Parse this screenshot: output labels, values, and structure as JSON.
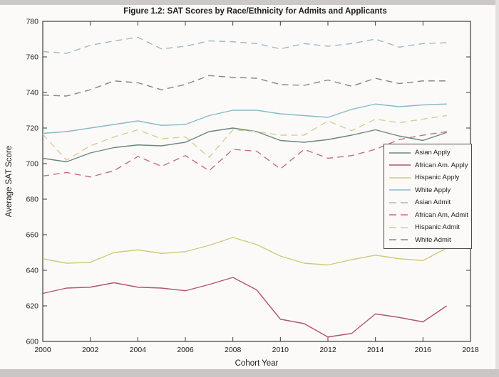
{
  "chart_data": {
    "type": "line",
    "title": "Figure 1.2: SAT Scores by Race/Ethnicity for Admits and Applicants",
    "xlabel": "Cohort Year",
    "ylabel": "Average SAT Score",
    "xlim": [
      2000,
      2018
    ],
    "ylim": [
      600,
      780
    ],
    "x_ticks": [
      2000,
      2002,
      2004,
      2006,
      2008,
      2010,
      2012,
      2014,
      2016,
      2018
    ],
    "y_ticks": [
      600,
      620,
      640,
      660,
      680,
      700,
      720,
      740,
      760,
      780
    ],
    "grid": false,
    "legend_position": "right-middle",
    "x": [
      2000,
      2001,
      2002,
      2003,
      2004,
      2005,
      2006,
      2007,
      2008,
      2009,
      2010,
      2011,
      2012,
      2013,
      2014,
      2015,
      2016,
      2017
    ],
    "series": [
      {
        "name": "Asian Apply",
        "style": "solid",
        "color": "#68887e",
        "values": [
          703,
          701,
          706,
          709,
          710.5,
          710,
          712,
          718,
          720,
          718,
          713,
          712,
          713.5,
          716,
          719,
          715.5,
          713,
          717.5
        ]
      },
      {
        "name": "African Am. Apply",
        "style": "solid",
        "color": "#b2546c",
        "values": [
          627,
          630,
          630.5,
          633,
          630.5,
          630,
          628.5,
          632,
          636,
          629,
          612.5,
          610,
          602.5,
          604.5,
          615.5,
          613.5,
          611,
          620
        ]
      },
      {
        "name": "Hispanic Apply",
        "style": "solid",
        "color": "#cfca7c",
        "values": [
          646.5,
          644,
          644.5,
          650,
          651.5,
          649.5,
          650.5,
          654,
          658.5,
          654.5,
          648,
          644,
          643,
          646,
          648.5,
          646.5,
          645.5,
          652.5
        ]
      },
      {
        "name": "White Apply",
        "style": "solid",
        "color": "#88bac8",
        "values": [
          717,
          718,
          720,
          722,
          724,
          721.5,
          722,
          727,
          730,
          730,
          728,
          727,
          726,
          730.5,
          733.5,
          732,
          733,
          733.5
        ]
      },
      {
        "name": "Asian Admit",
        "style": "dashed",
        "color": "#a3b8c4",
        "values": [
          763,
          762,
          766.5,
          769,
          771,
          764.5,
          766,
          769,
          768.5,
          767.5,
          764.5,
          767.5,
          766,
          767.5,
          770,
          765.5,
          767.5,
          768
        ]
      },
      {
        "name": "African Am, Admit",
        "style": "dashed",
        "color": "#c4717c",
        "values": [
          693,
          695,
          692.5,
          696,
          704,
          698.5,
          704.5,
          696,
          708,
          707,
          697,
          708,
          703,
          704.5,
          708,
          713.5,
          716,
          718
        ]
      },
      {
        "name": "Hispanic Admit",
        "style": "dashed",
        "color": "#d6ce94",
        "values": [
          716.5,
          702,
          710,
          715,
          719,
          714,
          715,
          703.5,
          719,
          718,
          716,
          716,
          724,
          718.5,
          725,
          723,
          725,
          727
        ]
      },
      {
        "name": "White Admit",
        "style": "dashed",
        "color": "#80858c",
        "values": [
          738.5,
          738,
          741.5,
          746.5,
          745.5,
          741.5,
          744.5,
          749.5,
          748.5,
          748,
          744.5,
          744,
          747,
          743.5,
          748,
          745,
          746.5,
          746.5
        ]
      }
    ]
  }
}
